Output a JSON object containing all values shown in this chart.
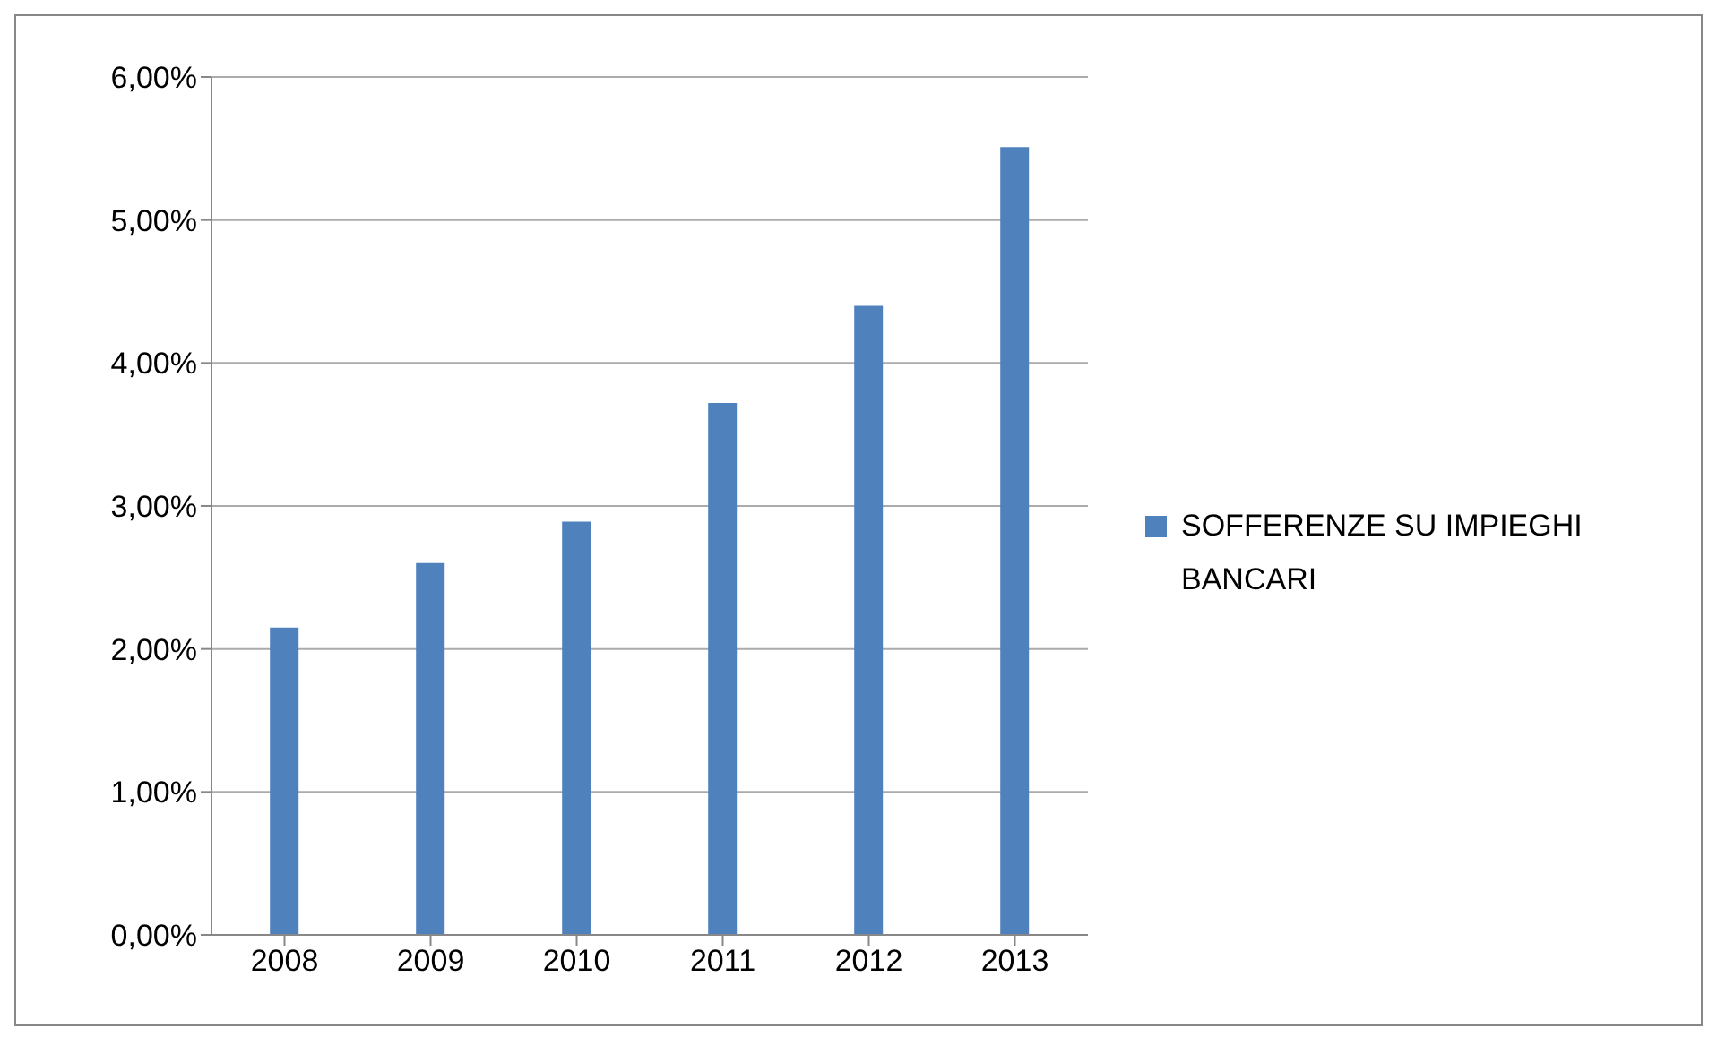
{
  "chart_data": {
    "type": "bar",
    "categories": [
      "2008",
      "2009",
      "2010",
      "2011",
      "2012",
      "2013"
    ],
    "series": [
      {
        "name": "SOFFERENZE SU IMPIEGHI BANCARI",
        "color": "#4f81bd",
        "values": [
          2.15,
          2.6,
          2.89,
          3.72,
          4.4,
          5.51
        ]
      }
    ],
    "ylim": [
      0,
      6
    ],
    "yticks": [
      {
        "value": 0,
        "label": "0,00%"
      },
      {
        "value": 1,
        "label": "1,00%"
      },
      {
        "value": 2,
        "label": "2,00%"
      },
      {
        "value": 3,
        "label": "3,00%"
      },
      {
        "value": 4,
        "label": "4,00%"
      },
      {
        "value": 5,
        "label": "5,00%"
      },
      {
        "value": 6,
        "label": "6,00%"
      }
    ],
    "grid": "y",
    "legend": "right"
  }
}
